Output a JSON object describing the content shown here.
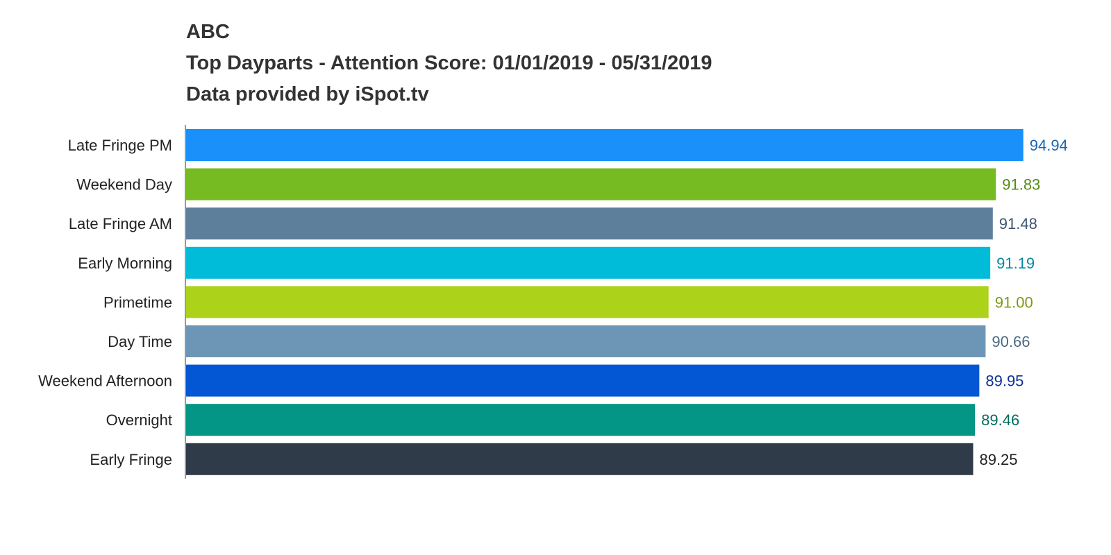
{
  "chart_data": {
    "type": "bar",
    "orientation": "horizontal",
    "title": [
      "ABC",
      "Top Dayparts - Attention Score: 01/01/2019 - 05/31/2019",
      "Data provided by iSpot.tv"
    ],
    "categories": [
      "Late Fringe PM",
      "Weekend Day",
      "Late Fringe AM",
      "Early Morning",
      "Primetime",
      "Day Time",
      "Weekend Afternoon",
      "Overnight",
      "Early Fringe"
    ],
    "values": [
      94.94,
      91.83,
      91.48,
      91.19,
      91.0,
      90.66,
      89.95,
      89.46,
      89.25
    ],
    "value_labels": [
      "94.94",
      "91.83",
      "91.48",
      "91.19",
      "91.00",
      "90.66",
      "89.95",
      "89.46",
      "89.25"
    ],
    "bar_colors": [
      "#1a91fa",
      "#77bb22",
      "#5d7f9c",
      "#00bcd8",
      "#acd21a",
      "#6d96b6",
      "#0356d4",
      "#039686",
      "#2f3b48"
    ],
    "label_colors": [
      "#1566b0",
      "#558a14",
      "#3d5570",
      "#00889e",
      "#7a9a10",
      "#4b6a85",
      "#0f2f9a",
      "#046b5e",
      "#222222"
    ],
    "xlim": [
      0,
      100
    ],
    "grid": false,
    "legend": "none"
  }
}
